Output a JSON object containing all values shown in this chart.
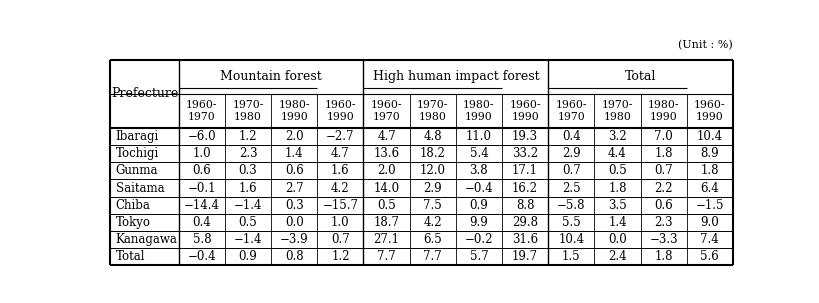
{
  "unit_label": "(Unit : %)",
  "col_groups": [
    {
      "label": "Mountain forest"
    },
    {
      "label": "High human impact forest"
    },
    {
      "label": "Total"
    }
  ],
  "sub_headers": [
    "1960-\n1970",
    "1970-\n1980",
    "1980-\n1990",
    "1960-\n1990",
    "1960-\n1970",
    "1970-\n1980",
    "1980-\n1990",
    "1960-\n1990",
    "1960-\n1970",
    "1970-\n1980",
    "1980-\n1990",
    "1960-\n1990"
  ],
  "row_header": "Prefecture",
  "rows": [
    {
      "name": "Ibaragi",
      "vals": [
        -6.0,
        1.2,
        2.0,
        -2.7,
        4.7,
        4.8,
        11.0,
        19.3,
        0.4,
        3.2,
        7.0,
        10.4
      ]
    },
    {
      "name": "Tochigi",
      "vals": [
        1.0,
        2.3,
        1.4,
        4.7,
        13.6,
        18.2,
        5.4,
        33.2,
        2.9,
        4.4,
        1.8,
        8.9
      ]
    },
    {
      "name": "Gunma",
      "vals": [
        0.6,
        0.3,
        0.6,
        1.6,
        2.0,
        12.0,
        3.8,
        17.1,
        0.7,
        0.5,
        0.7,
        1.8
      ]
    },
    {
      "name": "Saitama",
      "vals": [
        -0.1,
        1.6,
        2.7,
        4.2,
        14.0,
        2.9,
        -0.4,
        16.2,
        2.5,
        1.8,
        2.2,
        6.4
      ]
    },
    {
      "name": "Chiba",
      "vals": [
        -14.4,
        -1.4,
        0.3,
        -15.7,
        0.5,
        7.5,
        0.9,
        8.8,
        -5.8,
        3.5,
        0.6,
        -1.5
      ]
    },
    {
      "name": "Tokyo",
      "vals": [
        0.4,
        0.5,
        0.0,
        1.0,
        18.7,
        4.2,
        9.9,
        29.8,
        5.5,
        1.4,
        2.3,
        9.0
      ]
    },
    {
      "name": "Kanagawa",
      "vals": [
        5.8,
        -1.4,
        -3.9,
        0.7,
        27.1,
        6.5,
        -0.2,
        31.6,
        10.4,
        0.0,
        -3.3,
        7.4
      ]
    },
    {
      "name": "Total",
      "vals": [
        -0.4,
        0.9,
        0.8,
        1.2,
        7.7,
        7.7,
        5.7,
        19.7,
        1.5,
        2.4,
        1.8,
        5.6
      ]
    }
  ],
  "bg_color": "#ffffff",
  "font_size_unit": 8,
  "font_size_group": 9,
  "font_size_subhdr": 7.8,
  "font_size_pref": 9,
  "font_size_data": 8.5
}
